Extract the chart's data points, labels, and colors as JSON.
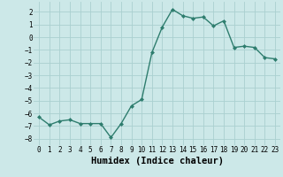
{
  "xlabel": "Humidex (Indice chaleur)",
  "x_values": [
    0,
    1,
    2,
    3,
    4,
    5,
    6,
    7,
    8,
    9,
    10,
    11,
    12,
    13,
    14,
    15,
    16,
    17,
    18,
    19,
    20,
    21,
    22,
    23
  ],
  "y_values": [
    -6.3,
    -6.9,
    -6.6,
    -6.5,
    -6.8,
    -6.8,
    -6.8,
    -7.9,
    -6.8,
    -5.4,
    -4.9,
    -1.2,
    0.8,
    2.2,
    1.7,
    1.5,
    1.6,
    0.9,
    1.3,
    -0.8,
    -0.7,
    -0.8,
    -1.6,
    -1.7
  ],
  "ylim": [
    -8.5,
    2.8
  ],
  "yticks": [
    -8,
    -7,
    -6,
    -5,
    -4,
    -3,
    -2,
    -1,
    0,
    1,
    2
  ],
  "line_color": "#2e7d6e",
  "marker": "D",
  "marker_size": 2.0,
  "bg_color": "#cce8e8",
  "grid_color": "#aad0d0",
  "line_width": 1.0,
  "tick_fontsize": 5.5,
  "xlabel_fontsize": 7.5
}
